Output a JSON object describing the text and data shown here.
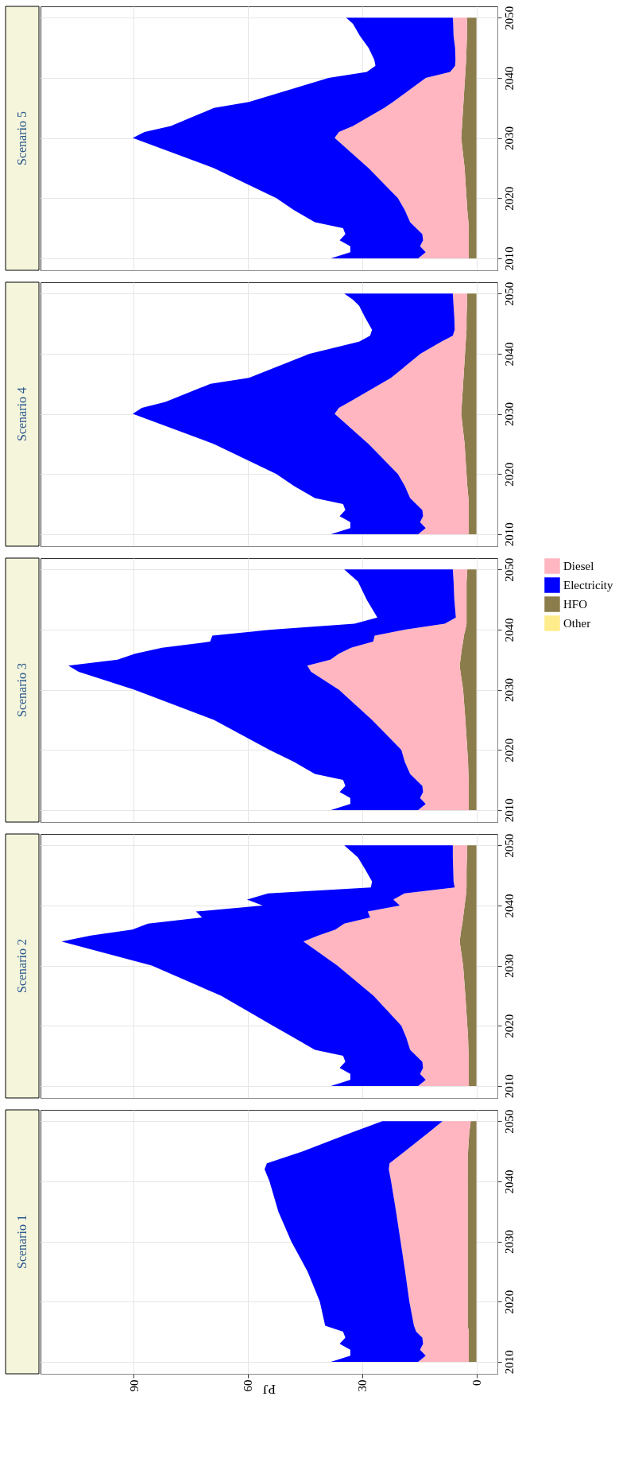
{
  "chart_data": [
    {
      "type": "area",
      "stacked": true,
      "orientation": "horizontal",
      "title": "Scenario 5",
      "tick_labels": "y",
      "grid": true,
      "legend": "right",
      "ylim": [
        2008,
        2051.9
      ],
      "yticks": [
        2010,
        2020,
        2030,
        2040,
        2050
      ],
      "xlim": [
        114.4,
        -5.5
      ],
      "xticks": [
        0,
        30,
        60,
        90
      ],
      "x": [
        2010,
        2011,
        2012,
        2013,
        2014,
        2015,
        2016,
        2018,
        2020,
        2025,
        2030,
        2031,
        2032,
        2035,
        2036,
        2040,
        2041,
        2042,
        2043,
        2045,
        2047,
        2049,
        2050
      ],
      "series": [
        {
          "name": "HFO",
          "color": "#8b7d4b",
          "values": [
            2.0,
            2.0,
            2.0,
            2.0,
            2.0,
            2.0,
            2.1,
            2.4,
            2.6,
            3.1,
            4.0,
            3.9,
            3.8,
            3.5,
            3.4,
            3.0,
            2.9,
            2.8,
            2.7,
            2.6,
            2.5,
            2.5,
            2.4
          ]
        },
        {
          "name": "Diesel",
          "color": "#ffb6c1",
          "values": [
            13.3,
            11.3,
            12.8,
            12.0,
            12.2,
            13.8,
            15.3,
            16.4,
            18.0,
            25.2,
            33.2,
            32.2,
            28.6,
            20.7,
            18.5,
            10.3,
            4.0,
            2.8,
            2.8,
            3.0,
            3.5,
            3.6,
            3.8
          ]
        },
        {
          "name": "Electricity",
          "color": "#0000ff",
          "values": [
            22.9,
            19.8,
            18.3,
            21.9,
            20.2,
            19.2,
            25.0,
            29.1,
            31.9,
            40.6,
            53.0,
            51.0,
            47.8,
            44.7,
            37.8,
            25.5,
            21.9,
            20.9,
            21.3,
            22.7,
            24.6,
            26.3,
            28.0
          ]
        },
        {
          "name": "Other",
          "color": "#ffec8b",
          "values": [
            null,
            null,
            null,
            null,
            null,
            null,
            null,
            null,
            null,
            null,
            null,
            null,
            null,
            null,
            null,
            null,
            null,
            null,
            null,
            null,
            null,
            null,
            null
          ]
        }
      ]
    },
    {
      "type": "area",
      "stacked": true,
      "orientation": "horizontal",
      "title": "Scenario 4",
      "tick_labels": "y",
      "grid": true,
      "ylim": [
        2008,
        2051.9
      ],
      "yticks": [
        2010,
        2020,
        2030,
        2040,
        2050
      ],
      "xlim": [
        114.4,
        -5.5
      ],
      "xticks": [
        0,
        30,
        60,
        90
      ],
      "x": [
        2010,
        2011,
        2012,
        2013,
        2014,
        2015,
        2016,
        2018,
        2020,
        2025,
        2030,
        2031,
        2032,
        2035,
        2036,
        2040,
        2042,
        2043,
        2044,
        2046,
        2048,
        2049,
        2050
      ],
      "series": [
        {
          "color": "#8b7d4b",
          "values": [
            2.0,
            2.0,
            2.0,
            2.0,
            2.0,
            2.0,
            2.1,
            2.4,
            2.6,
            3.1,
            4.0,
            3.9,
            3.8,
            3.5,
            3.4,
            3.0,
            2.8,
            2.7,
            2.6,
            2.6,
            2.5,
            2.5,
            2.4
          ]
        },
        {
          "color": "#ffb6c1",
          "values": [
            13.3,
            11.3,
            12.8,
            12.0,
            12.2,
            13.8,
            15.3,
            16.4,
            18.0,
            25.2,
            33.2,
            32.2,
            29.5,
            21.6,
            19.0,
            11.7,
            6.4,
            3.5,
            3.1,
            3.2,
            3.5,
            3.6,
            3.8
          ]
        },
        {
          "color": "#0000ff",
          "values": [
            22.9,
            19.8,
            18.3,
            21.9,
            20.2,
            19.2,
            25.0,
            29.1,
            31.9,
            40.6,
            53.0,
            51.7,
            48.3,
            44.7,
            37.3,
            29.1,
            21.6,
            21.7,
            21.7,
            23.4,
            24.8,
            26.3,
            28.5
          ]
        }
      ]
    },
    {
      "type": "area",
      "stacked": true,
      "orientation": "horizontal",
      "title": "Scenario 3",
      "tick_labels": "y",
      "grid": true,
      "ylim": [
        2008,
        2051.9
      ],
      "yticks": [
        2010,
        2020,
        2030,
        2040,
        2050
      ],
      "xlim": [
        114.4,
        -5.5
      ],
      "xticks": [
        0,
        30,
        60,
        90
      ],
      "x": [
        2010,
        2011,
        2012,
        2013,
        2014,
        2015,
        2016,
        2018,
        2020,
        2025,
        2030,
        2033,
        2034,
        2035,
        2036,
        2037,
        2038,
        2039,
        2040,
        2041,
        2042,
        2045,
        2048,
        2050
      ],
      "series": [
        {
          "color": "#8b7d4b",
          "values": [
            2.0,
            2.0,
            2.0,
            2.0,
            2.0,
            2.0,
            2.1,
            2.2,
            2.4,
            2.9,
            3.5,
            4.2,
            4.4,
            4.2,
            4.0,
            3.8,
            3.5,
            3.3,
            2.9,
            2.6,
            2.6,
            2.6,
            2.6,
            2.4
          ]
        },
        {
          "color": "#ffb6c1",
          "values": [
            13.3,
            11.3,
            12.8,
            12.0,
            12.2,
            13.8,
            15.3,
            16.6,
            17.3,
            24.5,
            32.6,
            39.2,
            40.0,
            34.1,
            32.1,
            29.1,
            23.6,
            23.4,
            15.9,
            5.7,
            2.8,
            3.2,
            3.4,
            3.8
          ]
        },
        {
          "color": "#0000ff",
          "values": [
            22.9,
            19.8,
            18.3,
            21.9,
            20.2,
            19.2,
            25.0,
            29.1,
            34.6,
            41.5,
            53.7,
            61.0,
            62.7,
            55.9,
            53.5,
            49.6,
            42.8,
            42.6,
            35.0,
            23.7,
            20.6,
            23.0,
            25.1,
            28.5
          ]
        }
      ]
    },
    {
      "type": "area",
      "stacked": true,
      "orientation": "horizontal",
      "title": "Scenario 2",
      "tick_labels": "y",
      "grid": true,
      "ylim": [
        2008,
        2051.9
      ],
      "yticks": [
        2010,
        2020,
        2030,
        2040,
        2050
      ],
      "xlim": [
        114.4,
        -5.5
      ],
      "xticks": [
        0,
        30,
        60,
        90
      ],
      "x": [
        2010,
        2011,
        2012,
        2013,
        2014,
        2015,
        2016,
        2018,
        2020,
        2025,
        2030,
        2034,
        2035,
        2036,
        2037,
        2038,
        2039,
        2040,
        2041,
        2042,
        2043,
        2044,
        2046,
        2048,
        2050
      ],
      "series": [
        {
          "color": "#8b7d4b",
          "values": [
            2.0,
            2.0,
            2.0,
            2.0,
            2.0,
            2.0,
            2.1,
            2.2,
            2.4,
            2.9,
            3.5,
            4.4,
            4.2,
            4.0,
            3.7,
            3.5,
            3.3,
            3.1,
            2.9,
            2.7,
            2.6,
            2.6,
            2.6,
            2.5,
            2.4
          ]
        },
        {
          "color": "#ffb6c1",
          "values": [
            13.3,
            11.3,
            12.8,
            12.0,
            12.2,
            13.8,
            15.3,
            16.2,
            17.3,
            24.1,
            33.0,
            41.0,
            37.3,
            33.0,
            31.0,
            24.4,
            25.2,
            17.0,
            18.9,
            16.2,
            3.1,
            3.4,
            3.5,
            3.7,
            3.8
          ]
        },
        {
          "color": "#0000ff",
          "values": [
            22.9,
            19.8,
            18.3,
            21.9,
            20.2,
            19.2,
            25.0,
            29.5,
            33.7,
            40.0,
            48.7,
            63.5,
            59.7,
            53.3,
            51.5,
            44.1,
            45.1,
            36.0,
            38.4,
            35.8,
            22.0,
            21.4,
            23.1,
            24.9,
            28.5
          ]
        }
      ]
    },
    {
      "type": "area",
      "stacked": true,
      "orientation": "horizontal",
      "title": "Scenario 1",
      "xlabel": "PJ",
      "grid": true,
      "ylim": [
        2008,
        2051.9
      ],
      "yticks": [
        2010,
        2020,
        2030,
        2040,
        2050
      ],
      "xlim": [
        114.4,
        -5.5
      ],
      "xticks": [
        0,
        30,
        60,
        90
      ],
      "x": [
        2010,
        2011,
        2012,
        2013,
        2014,
        2015,
        2016,
        2020,
        2025,
        2030,
        2035,
        2040,
        2042,
        2043,
        2045,
        2048,
        2050
      ],
      "series": [
        {
          "color": "#8b7d4b",
          "values": [
            2.0,
            2.0,
            2.0,
            2.0,
            2.0,
            2.0,
            2.3,
            2.3,
            2.3,
            2.3,
            2.3,
            2.3,
            2.3,
            2.3,
            2.2,
            1.9,
            1.5
          ]
        },
        {
          "color": "#ffb6c1",
          "values": [
            13.3,
            11.3,
            12.8,
            12.0,
            12.2,
            13.8,
            14.1,
            15.3,
            16.4,
            17.6,
            18.8,
            20.1,
            20.7,
            20.5,
            16.6,
            10.9,
            7.4
          ]
        },
        {
          "color": "#0000ff",
          "values": [
            22.9,
            19.8,
            18.3,
            21.9,
            20.2,
            19.2,
            23.3,
            23.5,
            25.6,
            28.7,
            30.9,
            31.9,
            32.6,
            32.2,
            26.8,
            20.5,
            15.8
          ]
        }
      ]
    }
  ]
}
